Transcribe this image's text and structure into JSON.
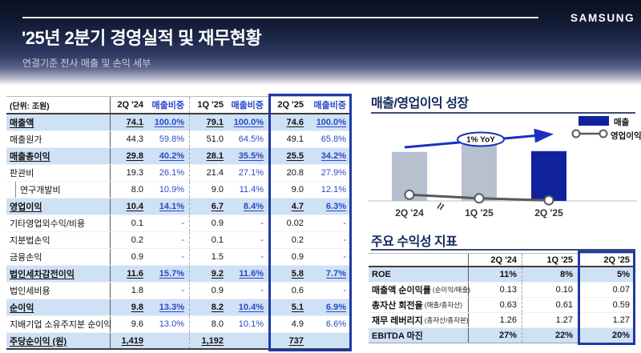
{
  "brand": "SAMSUNG",
  "header": {
    "title": "'25년 2분기 경영실적 및 재무현황",
    "subtitle": "연결기준 전사 매출 및 손익 세부"
  },
  "income_statement": {
    "unit_label": "(단위: 조원)",
    "col_headers": [
      "2Q '24",
      "매출비중",
      "1Q '25",
      "매출비중",
      "2Q '25",
      "매출비중"
    ],
    "rows": [
      {
        "label": "매출액",
        "style": "hl",
        "values": [
          "74.1",
          "100.0%",
          "79.1",
          "100.0%",
          "74.6",
          "100.0%"
        ]
      },
      {
        "label": "매출원가",
        "style": "plain",
        "values": [
          "44.3",
          "59.8%",
          "51.0",
          "64.5%",
          "49.1",
          "65.8%"
        ]
      },
      {
        "label": "매출총이익",
        "style": "hl",
        "values": [
          "29.8",
          "40.2%",
          "28.1",
          "35.5%",
          "25.5",
          "34.2%"
        ]
      },
      {
        "label": "판관비",
        "style": "plain",
        "values": [
          "19.3",
          "26.1%",
          "21.4",
          "27.1%",
          "20.8",
          "27.9%"
        ]
      },
      {
        "label": "연구개발비",
        "style": "sub",
        "values": [
          "8.0",
          "10.9%",
          "9.0",
          "11.4%",
          "9.0",
          "12.1%"
        ]
      },
      {
        "label": "영업이익",
        "style": "hl",
        "values": [
          "10.4",
          "14.1%",
          "6.7",
          "8.4%",
          "4.7",
          "6.3%"
        ]
      },
      {
        "label": "기타영업외수익/비용",
        "style": "plain",
        "values": [
          "0.1",
          "-",
          "0.9",
          "-",
          "0.02",
          "-"
        ]
      },
      {
        "label": "지분법손익",
        "style": "plain",
        "values": [
          "0.2",
          "-",
          "0.1",
          "-",
          "0.2",
          "-"
        ]
      },
      {
        "label": "금융손익",
        "style": "plain",
        "values": [
          "0.9",
          "-",
          "1.5",
          "-",
          "0.9",
          "-"
        ]
      },
      {
        "label": "법인세차감전이익",
        "style": "hl",
        "values": [
          "11.6",
          "15.7%",
          "9.2",
          "11.6%",
          "5.8",
          "7.7%"
        ]
      },
      {
        "label": "법인세비용",
        "style": "plain",
        "values": [
          "1.8",
          "-",
          "0.9",
          "-",
          "0.6",
          "-"
        ]
      },
      {
        "label": "순이익",
        "style": "hl",
        "values": [
          "9.8",
          "13.3%",
          "8.2",
          "10.4%",
          "5.1",
          "6.9%"
        ]
      },
      {
        "label": "지배기업 소유주지분 순이익",
        "style": "plain",
        "values": [
          "9.6",
          "13.0%",
          "8.0",
          "10.1%",
          "4.9",
          "6.6%"
        ]
      },
      {
        "label": "주당순이익 (원)",
        "style": "hl",
        "values": [
          "1,419",
          "",
          "1,192",
          "",
          "737",
          ""
        ]
      }
    ]
  },
  "growth_chart": {
    "title": "매출/영업이익 성장"
  },
  "chart_data": {
    "type": "bar",
    "title": "매출/영업이익 성장",
    "categories": [
      "2Q '24",
      "1Q '25",
      "2Q '25"
    ],
    "series": [
      {
        "name": "매출",
        "type": "bar",
        "values": [
          74.1,
          79.1,
          74.6
        ]
      },
      {
        "name": "영업이익",
        "type": "line",
        "values": [
          10.4,
          6.7,
          4.7
        ]
      }
    ],
    "annotation": "1% YoY",
    "axis_break": true,
    "unit": "조원",
    "legend_position": "top-right",
    "colors": {
      "bar_muted": "#b7c0cf",
      "bar_highlight": "#10239c",
      "line": "#595959",
      "arrow": "#1b2fc0"
    }
  },
  "ratio_table": {
    "title": "주요 수익성 지표",
    "col_headers": [
      "2Q '24",
      "1Q '25",
      "2Q '25"
    ],
    "rows": [
      {
        "label": "ROE",
        "sub": "",
        "hl": true,
        "values": [
          "11%",
          "8%",
          "5%"
        ]
      },
      {
        "label": "매출액 순이익률",
        "sub": "(순이익/매출)",
        "hl": false,
        "values": [
          "0.13",
          "0.10",
          "0.07"
        ]
      },
      {
        "label": "총자산 회전율",
        "sub": "(매출/총자산)",
        "hl": false,
        "values": [
          "0.63",
          "0.61",
          "0.59"
        ]
      },
      {
        "label": "재무 레버리지",
        "sub": "(총자산/총자본)",
        "hl": false,
        "values": [
          "1.26",
          "1.27",
          "1.27"
        ]
      },
      {
        "label": "EBITDA 마진",
        "sub": "",
        "hl": true,
        "values": [
          "27%",
          "22%",
          "20%"
        ]
      }
    ]
  },
  "accent_colors": {
    "highlight_row_bg": "#cfe1f4",
    "highlight_box_border": "#1d3aa6",
    "blue_text": "#2b48c6",
    "section_title": "#15295e"
  }
}
